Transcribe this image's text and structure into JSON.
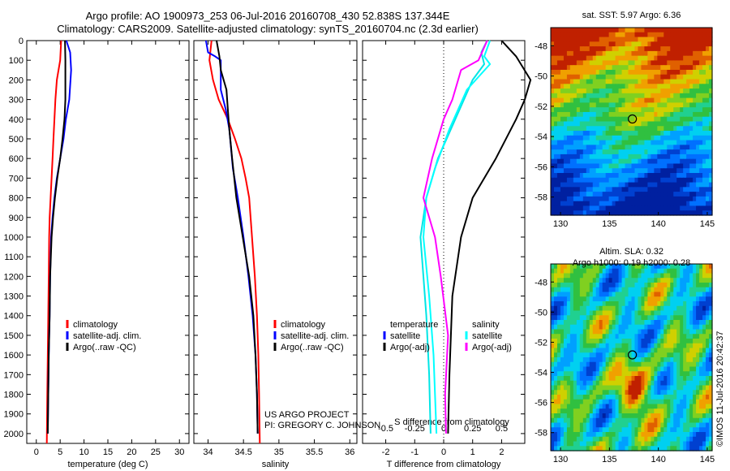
{
  "header": {
    "title_line1": "Argo profile: AO 1900973_253 06-Jul-2016 20160708_430 52.838S 137.344E",
    "title_line2": "Climatology: CARS2009. Satellite-adjusted climatology: synTS_20160704.nc (2.3d earlier)"
  },
  "colors": {
    "climatology": "#ff0000",
    "satellite": "#0000ff",
    "argo": "#000000",
    "t_satellite": "#00e5e5",
    "s_satellite": "#00ffff",
    "t_argo": "#000000",
    "s_argo": "#ff00ff"
  },
  "credit": {
    "line1": "US ARGO PROJECT",
    "line2": "PI: GREGORY C. JOHNSON",
    "imos": "©IMOS 11-Jul-2016 20:42:37"
  },
  "chart_data": [
    {
      "type": "line",
      "xlabel": "temperature (deg C)",
      "ylabel": "",
      "xlim": [
        -2,
        32
      ],
      "ylim": [
        2050,
        0
      ],
      "xticks": [
        0,
        5,
        10,
        15,
        20,
        25,
        30
      ],
      "yticks": [
        0,
        100,
        200,
        300,
        400,
        500,
        600,
        700,
        800,
        900,
        1000,
        1100,
        1200,
        1300,
        1400,
        1500,
        1600,
        1700,
        1800,
        1900,
        2000
      ],
      "legend": [
        "climatology",
        "satellite-adj. clim.",
        "Argo(..raw -QC)"
      ],
      "series": [
        {
          "name": "climatology",
          "color": "#ff0000",
          "points": [
            [
              5.2,
              0
            ],
            [
              5.0,
              100
            ],
            [
              4.3,
              200
            ],
            [
              4.0,
              300
            ],
            [
              3.8,
              400
            ],
            [
              3.6,
              500
            ],
            [
              3.4,
              600
            ],
            [
              3.2,
              700
            ],
            [
              3.0,
              800
            ],
            [
              2.8,
              900
            ],
            [
              2.7,
              1000
            ],
            [
              2.6,
              1200
            ],
            [
              2.5,
              1400
            ],
            [
              2.4,
              1600
            ],
            [
              2.3,
              1800
            ],
            [
              2.2,
              2050
            ]
          ]
        },
        {
          "name": "satellite-adj. clim.",
          "color": "#0000ff",
          "points": [
            [
              6.3,
              0
            ],
            [
              7.1,
              60
            ],
            [
              7.3,
              150
            ],
            [
              6.9,
              300
            ],
            [
              6.2,
              400
            ],
            [
              5.7,
              500
            ],
            [
              5.0,
              600
            ],
            [
              4.3,
              700
            ],
            [
              3.8,
              800
            ],
            [
              3.4,
              900
            ],
            [
              3.1,
              1000
            ],
            [
              2.9,
              1200
            ],
            [
              2.8,
              1400
            ],
            [
              2.6,
              1600
            ],
            [
              2.5,
              1800
            ],
            [
              2.4,
              2000
            ]
          ]
        },
        {
          "name": "Argo(..raw -QC)",
          "color": "#000000",
          "points": [
            [
              6.0,
              0
            ],
            [
              6.1,
              100
            ],
            [
              6.1,
              300
            ],
            [
              5.9,
              400
            ],
            [
              5.5,
              500
            ],
            [
              5.0,
              600
            ],
            [
              4.4,
              700
            ],
            [
              3.9,
              800
            ],
            [
              3.5,
              900
            ],
            [
              3.2,
              1000
            ],
            [
              2.9,
              1200
            ],
            [
              2.8,
              1400
            ],
            [
              2.6,
              1600
            ],
            [
              2.5,
              1800
            ],
            [
              2.4,
              2000
            ]
          ]
        }
      ]
    },
    {
      "type": "line",
      "xlabel": "salinity",
      "xlim": [
        33.8,
        36.1
      ],
      "ylim": [
        2050,
        0
      ],
      "xticks": [
        34,
        34.5,
        35,
        35.5,
        36
      ],
      "legend": [
        "climatology",
        "satellite-adj. clim.",
        "Argo(..raw -QC)"
      ],
      "series": [
        {
          "name": "climatology",
          "color": "#ff0000",
          "points": [
            [
              34.05,
              0
            ],
            [
              34.02,
              100
            ],
            [
              34.07,
              200
            ],
            [
              34.15,
              300
            ],
            [
              34.28,
              400
            ],
            [
              34.38,
              500
            ],
            [
              34.47,
              600
            ],
            [
              34.53,
              700
            ],
            [
              34.58,
              800
            ],
            [
              34.62,
              1000
            ],
            [
              34.66,
              1200
            ],
            [
              34.69,
              1400
            ],
            [
              34.71,
              1600
            ],
            [
              34.72,
              1800
            ],
            [
              34.73,
              2050
            ]
          ]
        },
        {
          "name": "satellite-adj. clim.",
          "color": "#0000ff",
          "points": [
            [
              33.97,
              0
            ],
            [
              34.0,
              60
            ],
            [
              34.1,
              80
            ],
            [
              34.18,
              100
            ],
            [
              34.18,
              250
            ],
            [
              34.25,
              350
            ],
            [
              34.3,
              450
            ],
            [
              34.35,
              650
            ],
            [
              34.42,
              800
            ],
            [
              34.5,
              1000
            ],
            [
              34.57,
              1200
            ],
            [
              34.63,
              1400
            ],
            [
              34.67,
              1600
            ],
            [
              34.69,
              1800
            ],
            [
              34.7,
              2000
            ]
          ]
        },
        {
          "name": "Argo(..raw -QC)",
          "color": "#000000",
          "points": [
            [
              34.12,
              0
            ],
            [
              34.16,
              80
            ],
            [
              34.18,
              150
            ],
            [
              34.26,
              250
            ],
            [
              34.28,
              350
            ],
            [
              34.3,
              450
            ],
            [
              34.34,
              600
            ],
            [
              34.4,
              800
            ],
            [
              34.49,
              1000
            ],
            [
              34.58,
              1200
            ],
            [
              34.64,
              1400
            ],
            [
              34.67,
              1600
            ],
            [
              34.69,
              1800
            ],
            [
              34.7,
              2000
            ]
          ]
        }
      ]
    },
    {
      "type": "line",
      "xlabel": "T difference from climatology",
      "x2label": "S difference from climatology",
      "xlim": [
        -2.8,
        2.8
      ],
      "ylim": [
        2050,
        0
      ],
      "xticks": [
        -2,
        -1,
        0,
        1,
        2
      ],
      "x2ticks": [
        "-0.5",
        "-0.25",
        "0",
        "0.25",
        "0.5"
      ],
      "legend_left": [
        "temperature",
        "satellite",
        "Argo(-adj)"
      ],
      "legend_right": [
        "salinity",
        "satellite",
        "Argo(-adj)"
      ],
      "series": [
        {
          "name": "T satellite",
          "color": "#00e5e5",
          "points": [
            [
              1.5,
              0
            ],
            [
              1.3,
              60
            ],
            [
              1.4,
              120
            ],
            [
              1.0,
              200
            ],
            [
              0.4,
              400
            ],
            [
              -0.2,
              600
            ],
            [
              -0.6,
              800
            ],
            [
              -0.8,
              1000
            ],
            [
              -0.7,
              1200
            ],
            [
              -0.6,
              1400
            ],
            [
              -0.5,
              1700
            ],
            [
              -0.45,
              2000
            ]
          ]
        },
        {
          "name": "S satellite",
          "color": "#00ffff",
          "points": [
            [
              1.6,
              0
            ],
            [
              1.4,
              80
            ],
            [
              1.6,
              120
            ],
            [
              0.8,
              250
            ],
            [
              0.2,
              450
            ],
            [
              -0.3,
              650
            ],
            [
              -0.6,
              800
            ],
            [
              -0.7,
              1000
            ],
            [
              -0.5,
              1300
            ],
            [
              -0.35,
              1600
            ],
            [
              -0.25,
              2000
            ]
          ]
        },
        {
          "name": "T Argo",
          "color": "#000000",
          "points": [
            [
              2.0,
              0
            ],
            [
              2.5,
              80
            ],
            [
              3.0,
              200
            ],
            [
              2.8,
              300
            ],
            [
              2.5,
              400
            ],
            [
              1.8,
              600
            ],
            [
              1.0,
              800
            ],
            [
              0.6,
              1000
            ],
            [
              0.3,
              1300
            ],
            [
              0.2,
              1700
            ],
            [
              0.15,
              2000
            ]
          ]
        },
        {
          "name": "S Argo",
          "color": "#ff00ff",
          "points": [
            [
              1.5,
              0
            ],
            [
              1.2,
              100
            ],
            [
              0.6,
              150
            ],
            [
              0.3,
              300
            ],
            [
              0,
              400
            ],
            [
              -0.4,
              600
            ],
            [
              -0.7,
              800
            ],
            [
              -0.3,
              1000
            ],
            [
              -0.1,
              1200
            ],
            [
              0.15,
              1500
            ],
            [
              0.05,
              1800
            ],
            [
              0.08,
              2000
            ]
          ]
        }
      ]
    },
    {
      "type": "heatmap",
      "title": "sat. SST: 5.97 Argo: 6.36",
      "xlim": [
        129,
        145.5
      ],
      "ylim": [
        -59.2,
        -46.8
      ],
      "xticks": [
        130,
        135,
        140,
        145
      ],
      "yticks": [
        -48,
        -50,
        -52,
        -54,
        -56,
        -58
      ],
      "marker": [
        137.344,
        -52.838
      ]
    },
    {
      "type": "heatmap",
      "title": "Altim. SLA: 0.32",
      "subtitle": "Argo h1000: 0.19 h2000: 0.28",
      "xlim": [
        129,
        145.5
      ],
      "ylim": [
        -59.2,
        -46.8
      ],
      "xticks": [
        130,
        135,
        140,
        145
      ],
      "yticks": [
        -48,
        -50,
        -52,
        -54,
        -56,
        -58
      ],
      "marker": [
        137.344,
        -52.838
      ]
    }
  ]
}
